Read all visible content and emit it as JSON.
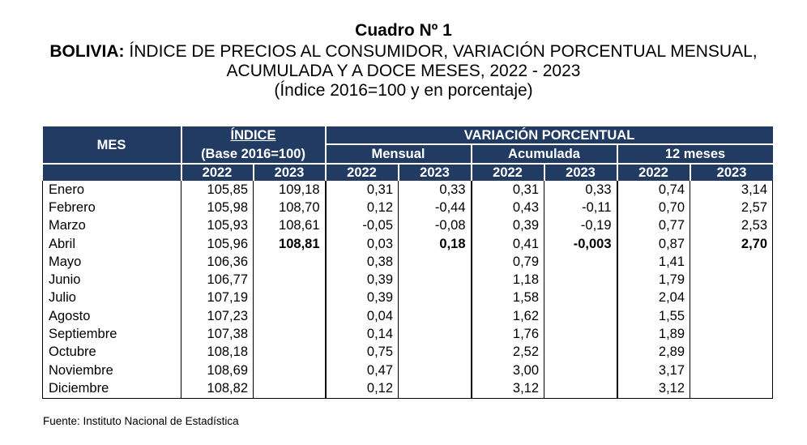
{
  "title": "Cuadro Nº 1",
  "subtitle_bold": "BOLIVIA:",
  "subtitle_rest": "ÍNDICE DE PRECIOS AL CONSUMIDOR, VARIACIÓN PORCENTUAL MENSUAL,",
  "subtitle_line2": "ACUMULADA Y A DOCE MESES, 2022 - 2023",
  "subtitle_line3": "(Índice 2016=100 y en porcentaje)",
  "header": {
    "mes": "MES",
    "indice": "ÍNDICE",
    "indice_base": "(Base 2016=100)",
    "variacion": "VARIACIÓN PORCENTUAL",
    "mensual": "Mensual",
    "acumulada": "Acumulada",
    "doce_meses": "12 meses",
    "year_a": "2022",
    "year_b": "2023"
  },
  "rows": [
    {
      "mes": "Enero",
      "i22": "105,85",
      "i23": "109,18",
      "m22": "0,31",
      "m23": "0,33",
      "a22": "0,31",
      "a23": "0,33",
      "d22": "0,74",
      "d23": "3,14"
    },
    {
      "mes": "Febrero",
      "i22": "105,98",
      "i23": "108,70",
      "m22": "0,12",
      "m23": "-0,44",
      "a22": "0,43",
      "a23": "-0,11",
      "d22": "0,70",
      "d23": "2,57"
    },
    {
      "mes": "Marzo",
      "i22": "105,93",
      "i23": "108,61",
      "m22": "-0,05",
      "m23": "-0,08",
      "a22": "0,39",
      "a23": "-0,19",
      "d22": "0,77",
      "d23": "2,53"
    },
    {
      "mes": "Abril",
      "i22": "105,96",
      "i23": "108,81",
      "m22": "0,03",
      "m23": "0,18",
      "a22": "0,41",
      "a23": "-0,003",
      "d22": "0,87",
      "d23": "2,70"
    },
    {
      "mes": "Mayo",
      "i22": "106,36",
      "i23": "",
      "m22": "0,38",
      "m23": "",
      "a22": "0,79",
      "a23": "",
      "d22": "1,41",
      "d23": ""
    },
    {
      "mes": "Junio",
      "i22": "106,77",
      "i23": "",
      "m22": "0,39",
      "m23": "",
      "a22": "1,18",
      "a23": "",
      "d22": "1,79",
      "d23": ""
    },
    {
      "mes": "Julio",
      "i22": "107,19",
      "i23": "",
      "m22": "0,39",
      "m23": "",
      "a22": "1,58",
      "a23": "",
      "d22": "2,04",
      "d23": ""
    },
    {
      "mes": "Agosto",
      "i22": "107,23",
      "i23": "",
      "m22": "0,04",
      "m23": "",
      "a22": "1,62",
      "a23": "",
      "d22": "1,55",
      "d23": ""
    },
    {
      "mes": "Septiembre",
      "i22": "107,38",
      "i23": "",
      "m22": "0,14",
      "m23": "",
      "a22": "1,76",
      "a23": "",
      "d22": "1,89",
      "d23": ""
    },
    {
      "mes": "Octubre",
      "i22": "108,18",
      "i23": "",
      "m22": "0,75",
      "m23": "",
      "a22": "2,52",
      "a23": "",
      "d22": "2,89",
      "d23": ""
    },
    {
      "mes": "Noviembre",
      "i22": "108,69",
      "i23": "",
      "m22": "0,47",
      "m23": "",
      "a22": "3,00",
      "a23": "",
      "d22": "3,17",
      "d23": ""
    },
    {
      "mes": "Diciembre",
      "i22": "108,82",
      "i23": "",
      "m22": "0,12",
      "m23": "",
      "a22": "3,12",
      "a23": "",
      "d22": "3,12",
      "d23": ""
    }
  ],
  "highlighted_row": "Abril",
  "source": "Fuente: Instituto Nacional de Estadística",
  "colors": {
    "header_bg": "#213b62",
    "header_text": "#ffffff"
  }
}
